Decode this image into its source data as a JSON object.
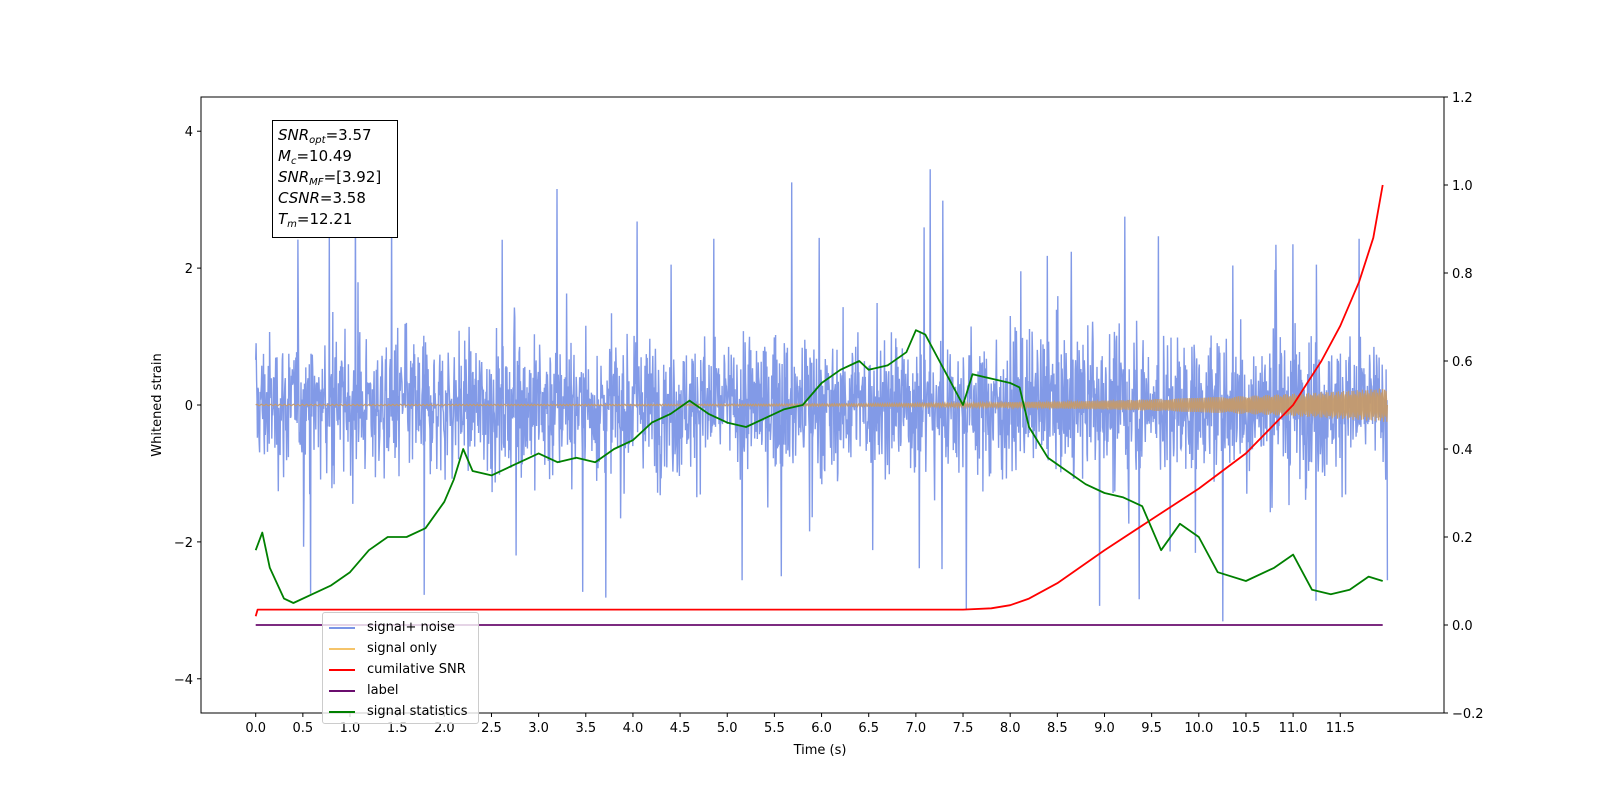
{
  "chart_data": {
    "type": "line",
    "xlabel": "Time (s)",
    "ylabel": "Whitened strain",
    "xlim": [
      -0.58,
      12.6
    ],
    "ylim": [
      -4.5,
      4.5
    ],
    "y2lim": [
      -0.2,
      1.2
    ],
    "xticks": [
      "0.0",
      "0.5",
      "1.0",
      "1.5",
      "2.0",
      "2.5",
      "3.0",
      "3.5",
      "4.0",
      "4.5",
      "5.0",
      "5.5",
      "6.0",
      "6.5",
      "7.0",
      "7.5",
      "8.0",
      "8.5",
      "9.0",
      "9.5",
      "10.0",
      "10.5",
      "11.0",
      "11.5"
    ],
    "yticks": [
      "4",
      "2",
      "0",
      "−2",
      "−4"
    ],
    "y2ticks": [
      "1.2",
      "1.0",
      "0.8",
      "0.6",
      "0.4",
      "0.2",
      "0.0",
      "−0.2"
    ],
    "annotation": [
      {
        "base": "SNR",
        "sub": "opt",
        "value": "=3.57"
      },
      {
        "base": "M",
        "sub": "c",
        "value": "=10.49"
      },
      {
        "base": "SNR",
        "sub": "MF",
        "value": "=[3.92]"
      },
      {
        "base": "CSNR",
        "sub": "",
        "value": "=3.58"
      },
      {
        "base": "T",
        "sub": "m",
        "value": "=12.21"
      }
    ],
    "series": [
      {
        "name": "signal+ noise",
        "color": "#7b95e6",
        "axis": "left",
        "style": "dense noise band, approx ±1.5 core with spikes to ±4",
        "x_range": [
          0,
          12
        ]
      },
      {
        "name": "signal only",
        "color": "#f5b342",
        "axis": "left",
        "style": "chirp, amplitude ~0 growing to ~0.25 at 12 s",
        "x_range": [
          0,
          12
        ]
      },
      {
        "name": "cumilative SNR",
        "color": "#ff0000",
        "axis": "right",
        "x": [
          0.0,
          0.02,
          1.0,
          3.0,
          5.0,
          7.0,
          7.5,
          7.8,
          8.0,
          8.2,
          8.5,
          9.0,
          9.5,
          10.0,
          10.5,
          11.0,
          11.3,
          11.5,
          11.7,
          11.85,
          11.95
        ],
        "y": [
          0.02,
          0.035,
          0.035,
          0.035,
          0.035,
          0.035,
          0.035,
          0.038,
          0.045,
          0.06,
          0.095,
          0.17,
          0.24,
          0.31,
          0.39,
          0.5,
          0.6,
          0.68,
          0.78,
          0.88,
          1.0
        ]
      },
      {
        "name": "label",
        "color": "#6a0d6e",
        "axis": "right",
        "x": [
          0.0,
          11.95
        ],
        "y": [
          0.0,
          0.0
        ]
      },
      {
        "name": "signal statistics",
        "color": "#008000",
        "axis": "right",
        "x": [
          0.0,
          0.07,
          0.15,
          0.3,
          0.4,
          0.6,
          0.8,
          1.0,
          1.2,
          1.4,
          1.6,
          1.8,
          2.0,
          2.1,
          2.2,
          2.3,
          2.5,
          2.7,
          2.9,
          3.0,
          3.2,
          3.4,
          3.6,
          3.8,
          4.0,
          4.2,
          4.4,
          4.6,
          4.8,
          5.0,
          5.2,
          5.4,
          5.6,
          5.8,
          6.0,
          6.2,
          6.4,
          6.5,
          6.7,
          6.9,
          7.0,
          7.1,
          7.25,
          7.4,
          7.5,
          7.6,
          7.8,
          8.0,
          8.1,
          8.2,
          8.4,
          8.6,
          8.8,
          9.0,
          9.2,
          9.4,
          9.6,
          9.8,
          10.0,
          10.2,
          10.5,
          10.8,
          11.0,
          11.2,
          11.4,
          11.6,
          11.8,
          11.95
        ],
        "y": [
          0.17,
          0.21,
          0.13,
          0.06,
          0.05,
          0.07,
          0.09,
          0.12,
          0.17,
          0.2,
          0.2,
          0.22,
          0.28,
          0.33,
          0.4,
          0.35,
          0.34,
          0.36,
          0.38,
          0.39,
          0.37,
          0.38,
          0.37,
          0.4,
          0.42,
          0.46,
          0.48,
          0.51,
          0.48,
          0.46,
          0.45,
          0.47,
          0.49,
          0.5,
          0.55,
          0.58,
          0.6,
          0.58,
          0.59,
          0.62,
          0.67,
          0.66,
          0.6,
          0.54,
          0.5,
          0.57,
          0.56,
          0.55,
          0.54,
          0.45,
          0.38,
          0.35,
          0.32,
          0.3,
          0.29,
          0.27,
          0.17,
          0.23,
          0.2,
          0.12,
          0.1,
          0.13,
          0.16,
          0.08,
          0.07,
          0.08,
          0.11,
          0.1
        ]
      }
    ]
  }
}
